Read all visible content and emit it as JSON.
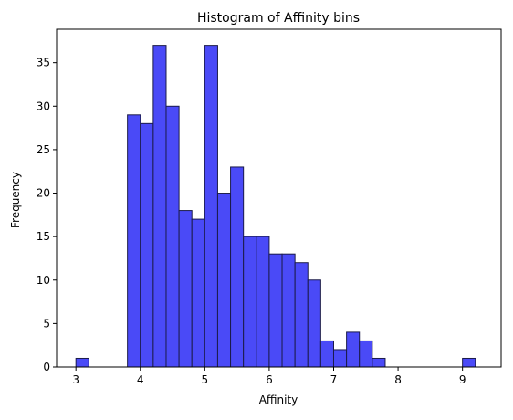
{
  "chart_data": {
    "type": "bar",
    "title": "Histogram of Affinity bins",
    "xlabel": "Affinity",
    "ylabel": "Frequency",
    "xlim": [
      2.7,
      9.6
    ],
    "ylim": [
      0,
      38.85
    ],
    "bin_width": 0.2,
    "bins": [
      {
        "start": 3.0,
        "end": 3.2,
        "count": 1
      },
      {
        "start": 3.2,
        "end": 3.4,
        "count": 0
      },
      {
        "start": 3.4,
        "end": 3.6,
        "count": 0
      },
      {
        "start": 3.6,
        "end": 3.8,
        "count": 0
      },
      {
        "start": 3.8,
        "end": 4.0,
        "count": 29
      },
      {
        "start": 4.0,
        "end": 4.2,
        "count": 28
      },
      {
        "start": 4.2,
        "end": 4.4,
        "count": 37
      },
      {
        "start": 4.4,
        "end": 4.6,
        "count": 30
      },
      {
        "start": 4.6,
        "end": 4.8,
        "count": 18
      },
      {
        "start": 4.8,
        "end": 5.0,
        "count": 17
      },
      {
        "start": 5.0,
        "end": 5.2,
        "count": 37
      },
      {
        "start": 5.2,
        "end": 5.4,
        "count": 20
      },
      {
        "start": 5.4,
        "end": 5.6,
        "count": 23
      },
      {
        "start": 5.6,
        "end": 5.8,
        "count": 15
      },
      {
        "start": 5.8,
        "end": 6.0,
        "count": 15
      },
      {
        "start": 6.0,
        "end": 6.2,
        "count": 13
      },
      {
        "start": 6.2,
        "end": 6.4,
        "count": 13
      },
      {
        "start": 6.4,
        "end": 6.6,
        "count": 12
      },
      {
        "start": 6.6,
        "end": 6.8,
        "count": 10
      },
      {
        "start": 6.8,
        "end": 7.0,
        "count": 3
      },
      {
        "start": 7.0,
        "end": 7.2,
        "count": 2
      },
      {
        "start": 7.2,
        "end": 7.4,
        "count": 4
      },
      {
        "start": 7.4,
        "end": 7.6,
        "count": 3
      },
      {
        "start": 7.6,
        "end": 7.8,
        "count": 1
      },
      {
        "start": 7.8,
        "end": 8.0,
        "count": 0
      },
      {
        "start": 8.0,
        "end": 8.2,
        "count": 0
      },
      {
        "start": 8.2,
        "end": 8.4,
        "count": 0
      },
      {
        "start": 8.4,
        "end": 8.6,
        "count": 0
      },
      {
        "start": 8.6,
        "end": 8.8,
        "count": 0
      },
      {
        "start": 8.8,
        "end": 9.0,
        "count": 0
      },
      {
        "start": 9.0,
        "end": 9.2,
        "count": 1
      }
    ],
    "xticks": [
      "3",
      "4",
      "5",
      "6",
      "7",
      "8",
      "9"
    ],
    "yticks": [
      "0",
      "5",
      "10",
      "15",
      "20",
      "25",
      "30",
      "35"
    ],
    "grid": false,
    "colors": {
      "bar_fill": "#4a4af7",
      "bar_edge": "#1b1b4a"
    }
  }
}
